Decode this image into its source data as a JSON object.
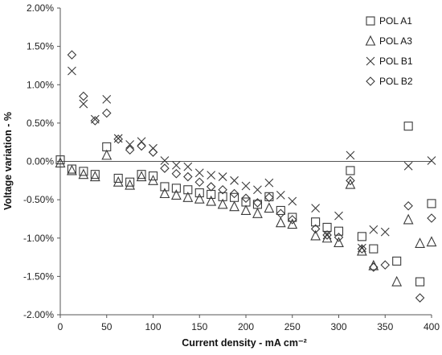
{
  "chart_data": {
    "type": "scatter",
    "xlabel": "Current density - mA cm⁻²",
    "ylabel": "Voltage variation - %",
    "xlim": [
      0,
      400
    ],
    "ylim": [
      -2.0,
      2.0
    ],
    "x_ticks": [
      "0",
      "50",
      "100",
      "150",
      "200",
      "250",
      "300",
      "350",
      "400"
    ],
    "y_ticks": [
      "2.00%",
      "1.50%",
      "1.00%",
      "0.50%",
      "0.00%",
      "-0.50%",
      "-1.00%",
      "-1.50%",
      "-2.00%"
    ],
    "grid": false,
    "legend_position": "top-right",
    "series": [
      {
        "name": "POL A1",
        "marker": "square",
        "points": [
          [
            0,
            0.02
          ],
          [
            12.5,
            -0.1
          ],
          [
            25,
            -0.13
          ],
          [
            37.5,
            -0.17
          ],
          [
            50,
            0.19
          ],
          [
            62.5,
            -0.22
          ],
          [
            75,
            -0.27
          ],
          [
            87.5,
            -0.17
          ],
          [
            100,
            -0.19
          ],
          [
            112.5,
            -0.33
          ],
          [
            125,
            -0.35
          ],
          [
            137.5,
            -0.37
          ],
          [
            150,
            -0.41
          ],
          [
            162.5,
            -0.43
          ],
          [
            175,
            -0.46
          ],
          [
            187.5,
            -0.47
          ],
          [
            200,
            -0.53
          ],
          [
            212.5,
            -0.56
          ],
          [
            225,
            -0.46
          ],
          [
            237.5,
            -0.64
          ],
          [
            250,
            -0.73
          ],
          [
            275,
            -0.79
          ],
          [
            287.5,
            -0.86
          ],
          [
            300,
            -0.91
          ],
          [
            312.5,
            -0.12
          ],
          [
            325,
            -0.98
          ],
          [
            337.5,
            -1.14
          ],
          [
            362.5,
            -1.3
          ],
          [
            375,
            0.46
          ],
          [
            387.5,
            -1.57
          ],
          [
            400,
            -0.55
          ]
        ]
      },
      {
        "name": "POL A3",
        "marker": "triangle",
        "points": [
          [
            0,
            -0.02
          ],
          [
            12.5,
            -0.12
          ],
          [
            25,
            -0.17
          ],
          [
            37.5,
            -0.2
          ],
          [
            50,
            0.08
          ],
          [
            62.5,
            -0.27
          ],
          [
            75,
            -0.31
          ],
          [
            87.5,
            -0.2
          ],
          [
            100,
            -0.25
          ],
          [
            112.5,
            -0.42
          ],
          [
            125,
            -0.44
          ],
          [
            137.5,
            -0.47
          ],
          [
            150,
            -0.49
          ],
          [
            162.5,
            -0.52
          ],
          [
            175,
            -0.56
          ],
          [
            187.5,
            -0.59
          ],
          [
            200,
            -0.64
          ],
          [
            212.5,
            -0.68
          ],
          [
            225,
            -0.61
          ],
          [
            237.5,
            -0.8
          ],
          [
            250,
            -0.82
          ],
          [
            275,
            -0.97
          ],
          [
            287.5,
            -1.0
          ],
          [
            300,
            -1.06
          ],
          [
            312.5,
            -0.3
          ],
          [
            325,
            -1.17
          ],
          [
            337.5,
            -1.36
          ],
          [
            362.5,
            -1.57
          ],
          [
            375,
            -0.76
          ],
          [
            387.5,
            -1.07
          ],
          [
            400,
            -1.05
          ]
        ]
      },
      {
        "name": "POL B1",
        "marker": "x",
        "points": [
          [
            12.5,
            1.18
          ],
          [
            25,
            0.75
          ],
          [
            37.5,
            0.55
          ],
          [
            50,
            0.81
          ],
          [
            62.5,
            0.3
          ],
          [
            75,
            0.22
          ],
          [
            87.5,
            0.26
          ],
          [
            100,
            0.17
          ],
          [
            112.5,
            0.01
          ],
          [
            125,
            -0.05
          ],
          [
            137.5,
            -0.07
          ],
          [
            150,
            -0.15
          ],
          [
            162.5,
            -0.18
          ],
          [
            175,
            -0.2
          ],
          [
            187.5,
            -0.25
          ],
          [
            200,
            -0.32
          ],
          [
            212.5,
            -0.37
          ],
          [
            225,
            -0.28
          ],
          [
            237.5,
            -0.44
          ],
          [
            250,
            -0.52
          ],
          [
            275,
            -0.61
          ],
          [
            287.5,
            -0.96
          ],
          [
            300,
            -0.71
          ],
          [
            312.5,
            0.08
          ],
          [
            325,
            -1.13
          ],
          [
            337.5,
            -0.89
          ],
          [
            350,
            -0.92
          ],
          [
            375,
            -0.06
          ],
          [
            400,
            0.01
          ]
        ]
      },
      {
        "name": "POL B2",
        "marker": "diamond",
        "points": [
          [
            12.5,
            1.39
          ],
          [
            25,
            0.85
          ],
          [
            37.5,
            0.53
          ],
          [
            50,
            0.63
          ],
          [
            62.5,
            0.29
          ],
          [
            75,
            0.15
          ],
          [
            87.5,
            0.2
          ],
          [
            100,
            0.12
          ],
          [
            112.5,
            -0.09
          ],
          [
            125,
            -0.16
          ],
          [
            137.5,
            -0.2
          ],
          [
            150,
            -0.27
          ],
          [
            162.5,
            -0.33
          ],
          [
            175,
            -0.37
          ],
          [
            187.5,
            -0.42
          ],
          [
            200,
            -0.48
          ],
          [
            212.5,
            -0.54
          ],
          [
            225,
            -0.47
          ],
          [
            237.5,
            -0.68
          ],
          [
            250,
            -0.76
          ],
          [
            275,
            -0.88
          ],
          [
            287.5,
            -0.96
          ],
          [
            300,
            -0.99
          ],
          [
            312.5,
            -0.25
          ],
          [
            325,
            -1.14
          ],
          [
            337.5,
            -1.38
          ],
          [
            350,
            -1.35
          ],
          [
            375,
            -0.58
          ],
          [
            387.5,
            -1.78
          ],
          [
            400,
            -0.74
          ]
        ]
      }
    ]
  }
}
